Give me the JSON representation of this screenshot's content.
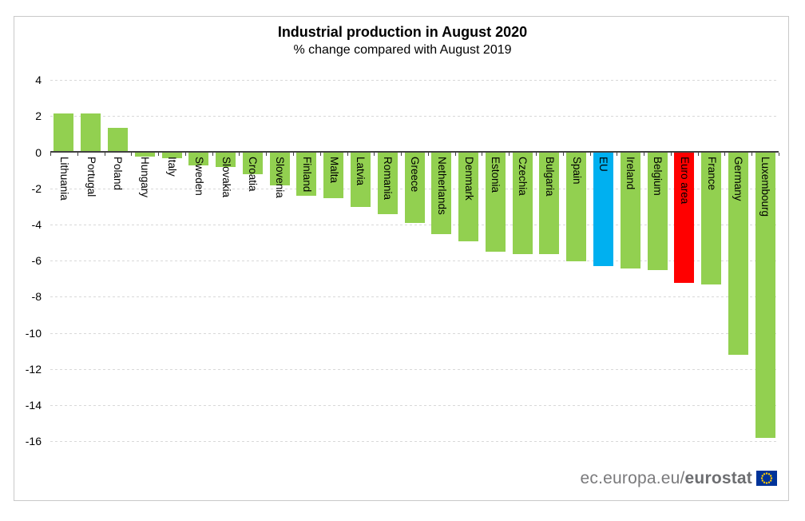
{
  "header": {
    "title": "Industrial production in August 2020",
    "subtitle": "% change compared with August 2019"
  },
  "footer": {
    "site_prefix": "ec.europa.eu/",
    "site_bold": "eurostat"
  },
  "chart_data": {
    "type": "bar",
    "title": "Industrial production in August 2020",
    "subtitle": "% change compared with August 2019",
    "xlabel": "",
    "ylabel": "% change vs August 2019",
    "yticks": [
      4,
      2,
      0,
      -2,
      -4,
      -6,
      -8,
      -10,
      -12,
      -14,
      -16
    ],
    "ylim": [
      -16.5,
      4.5
    ],
    "grid": "horizontal-dashed",
    "legend": "none",
    "palette": {
      "member_state": "#92D050",
      "eu": "#00B0F0",
      "euro_area": "#FF0000"
    },
    "bars": [
      {
        "label": "Lithuania",
        "value": 2.1,
        "color": "member_state"
      },
      {
        "label": "Portugal",
        "value": 2.1,
        "color": "member_state"
      },
      {
        "label": "Poland",
        "value": 1.3,
        "color": "member_state"
      },
      {
        "label": "Hungary",
        "value": -0.2,
        "color": "member_state"
      },
      {
        "label": "Italy",
        "value": -0.3,
        "color": "member_state"
      },
      {
        "label": "Sweden",
        "value": -0.7,
        "color": "member_state"
      },
      {
        "label": "Slovakia",
        "value": -0.8,
        "color": "member_state"
      },
      {
        "label": "Croatia",
        "value": -1.2,
        "color": "member_state"
      },
      {
        "label": "Slovenia",
        "value": -1.8,
        "color": "member_state"
      },
      {
        "label": "Finland",
        "value": -2.4,
        "color": "member_state"
      },
      {
        "label": "Malta",
        "value": -2.5,
        "color": "member_state"
      },
      {
        "label": "Latvia",
        "value": -3.0,
        "color": "member_state"
      },
      {
        "label": "Romania",
        "value": -3.4,
        "color": "member_state"
      },
      {
        "label": "Greece",
        "value": -3.9,
        "color": "member_state"
      },
      {
        "label": "Netherlands",
        "value": -4.5,
        "color": "member_state"
      },
      {
        "label": "Denmark",
        "value": -4.9,
        "color": "member_state"
      },
      {
        "label": "Estonia",
        "value": -5.5,
        "color": "member_state"
      },
      {
        "label": "Czechia",
        "value": -5.6,
        "color": "member_state"
      },
      {
        "label": "Bulgaria",
        "value": -5.6,
        "color": "member_state"
      },
      {
        "label": "Spain",
        "value": -6.0,
        "color": "member_state"
      },
      {
        "label": "EU",
        "value": -6.3,
        "color": "eu"
      },
      {
        "label": "Ireland",
        "value": -6.4,
        "color": "member_state"
      },
      {
        "label": "Belgium",
        "value": -6.5,
        "color": "member_state"
      },
      {
        "label": "Euro area",
        "value": -7.2,
        "color": "euro_area"
      },
      {
        "label": "France",
        "value": -7.3,
        "color": "member_state"
      },
      {
        "label": "Germany",
        "value": -11.2,
        "color": "member_state"
      },
      {
        "label": "Luxembourg",
        "value": -15.8,
        "color": "member_state"
      }
    ]
  }
}
